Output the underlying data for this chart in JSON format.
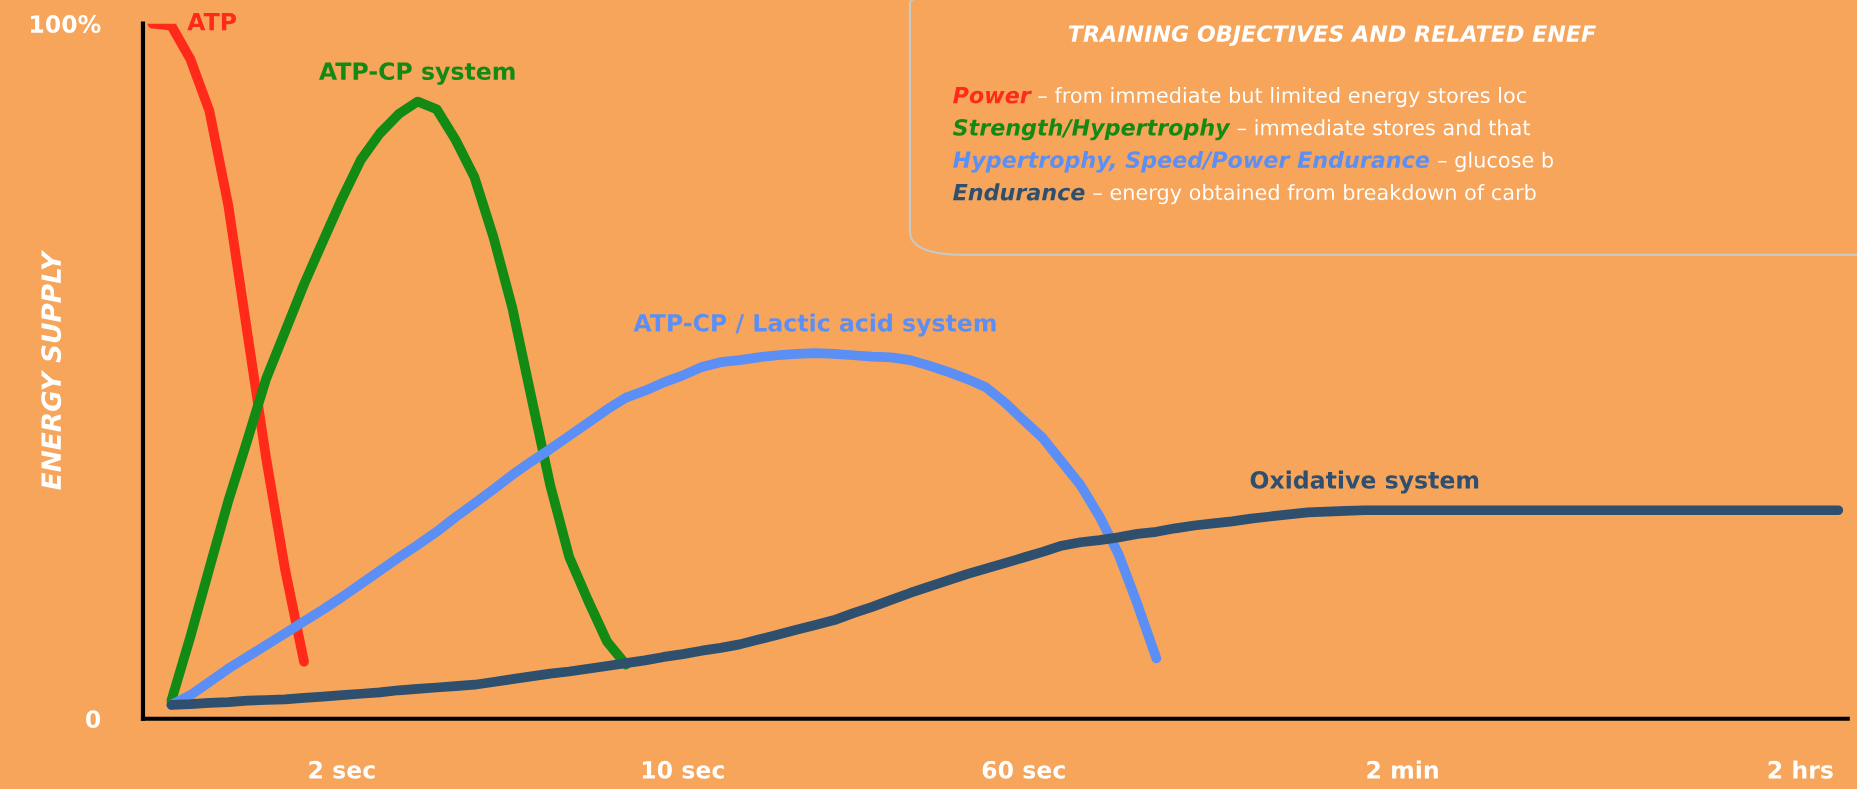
{
  "chart_data": {
    "type": "line",
    "ylabel": "ENERGY SUPPLY",
    "categories": [
      null,
      null,
      null,
      null,
      null,
      null,
      null,
      null,
      null,
      null,
      "2 sec",
      null,
      null,
      null,
      null,
      null,
      null,
      null,
      null,
      null,
      null,
      null,
      null,
      null,
      null,
      null,
      null,
      null,
      "10 sec",
      null,
      null,
      null,
      null,
      null,
      null,
      null,
      null,
      null,
      null,
      null,
      null,
      null,
      null,
      null,
      null,
      null,
      "60 sec",
      null,
      null,
      null,
      null,
      null,
      null,
      null,
      null,
      null,
      null,
      null,
      null,
      null,
      null,
      null,
      null,
      null,
      null,
      null,
      "2 min",
      null,
      null,
      null,
      null,
      null,
      null,
      null,
      null,
      null,
      null,
      null,
      null,
      null,
      null,
      null,
      null,
      null,
      null,
      null,
      null,
      "2 hrs",
      null,
      null
    ],
    "ylim": [
      0,
      100
    ],
    "yticks": [
      0,
      {
        "value": 100,
        "label": "100%"
      }
    ],
    "grid": false,
    "legend": false,
    "marker": "none",
    "line_style": "solid",
    "series": [
      {
        "name": "ATP",
        "color": "#ff2a1a",
        "values": [
          100,
          99.7,
          94.9,
          87.5,
          73.9,
          55.7,
          37.5,
          21.5,
          8.2,
          null,
          null,
          null,
          null,
          null,
          null,
          null,
          null,
          null,
          null,
          null,
          null,
          null,
          null,
          null,
          null,
          null,
          null,
          null,
          null,
          null,
          null,
          null,
          null,
          null,
          null,
          null,
          null,
          null,
          null,
          null,
          null,
          null,
          null,
          null,
          null,
          null,
          null,
          null,
          null,
          null,
          null,
          null,
          null,
          null,
          null,
          null,
          null,
          null,
          null,
          null,
          null,
          null,
          null,
          null,
          null,
          null,
          null,
          null,
          null,
          null,
          null,
          null,
          null,
          null,
          null,
          null,
          null,
          null,
          null,
          null,
          null,
          null,
          null,
          null,
          null,
          null,
          null,
          null,
          null,
          null
        ]
      },
      {
        "name": "ATP-CP system",
        "color": "#138a13",
        "values": [
          null,
          2.6,
          11.8,
          21.6,
          31.3,
          40,
          48.9,
          55.7,
          62.5,
          68.7,
          74.8,
          80.4,
          84.2,
          87,
          88.8,
          87.7,
          83.3,
          77.9,
          69.3,
          59.1,
          46.3,
          33.6,
          23.3,
          17,
          11.1,
          7.8,
          null,
          null,
          null,
          null,
          null,
          null,
          null,
          null,
          null,
          null,
          null,
          null,
          null,
          null,
          null,
          null,
          null,
          null,
          null,
          null,
          null,
          null,
          null,
          null,
          null,
          null,
          null,
          null,
          null,
          null,
          null,
          null,
          null,
          null,
          null,
          null,
          null,
          null,
          null,
          null,
          null,
          null,
          null,
          null,
          null,
          null,
          null,
          null,
          null,
          null,
          null,
          null,
          null,
          null,
          null,
          null,
          null,
          null,
          null,
          null,
          null,
          null,
          null,
          null
        ]
      },
      {
        "name": "ATP-CP / Lactic acid system",
        "color": "#5b8ff5",
        "values": [
          null,
          2,
          3.4,
          5.3,
          7.2,
          8.9,
          10.6,
          12.3,
          14,
          15.7,
          17.5,
          19.4,
          21.3,
          23.2,
          25,
          26.9,
          29,
          31,
          33,
          35.1,
          37,
          38.8,
          40.7,
          42.6,
          44.5,
          46.2,
          47.2,
          48.4,
          49.4,
          50.6,
          51.3,
          51.6,
          52,
          52.3,
          52.5,
          52.6,
          52.5,
          52.3,
          52.1,
          52,
          51.6,
          50.8,
          49.9,
          48.9,
          47.7,
          45.5,
          42.9,
          40.4,
          37,
          33.6,
          29.1,
          23.7,
          16.5,
          8.7,
          null,
          null,
          null,
          null,
          null,
          null,
          null,
          null,
          null,
          null,
          null,
          null,
          null,
          null,
          null,
          null,
          null,
          null,
          null,
          null,
          null,
          null,
          null,
          null,
          null,
          null,
          null,
          null,
          null,
          null,
          null,
          null,
          null,
          null,
          null,
          null
        ]
      },
      {
        "name": "Oxidative system",
        "color": "#2f4f6f",
        "values": [
          null,
          2,
          2.1,
          2.3,
          2.4,
          2.6,
          2.7,
          2.8,
          3,
          3.2,
          3.4,
          3.6,
          3.8,
          4.1,
          4.3,
          4.5,
          4.7,
          4.9,
          5.3,
          5.7,
          6.1,
          6.5,
          6.8,
          7.2,
          7.6,
          8,
          8.4,
          8.9,
          9.3,
          9.8,
          10.2,
          10.7,
          11.4,
          12.1,
          12.8,
          13.5,
          14.2,
          15.2,
          16.1,
          17.1,
          18.1,
          19,
          19.9,
          20.8,
          21.6,
          22.4,
          23.2,
          24,
          24.9,
          25.4,
          25.7,
          26.1,
          26.6,
          26.9,
          27.4,
          27.8,
          28.1,
          28.4,
          28.8,
          29.1,
          29.4,
          29.7,
          29.8,
          29.9,
          30,
          30,
          30,
          30,
          30,
          30,
          30,
          30,
          30,
          30,
          30,
          30,
          30,
          30,
          30,
          30,
          30,
          30,
          30,
          30,
          30,
          30,
          30,
          30,
          30,
          30
        ]
      }
    ],
    "annotations": [
      "TRAINING OBJECTIVES AND RELATED ENEF",
      "Power – from immediate but limited energy stores loc",
      "Strength/Hypertrophy – immediate stores and that",
      "Hypertrophy, Speed/Power Endurance – glucose b",
      "Endurance – energy obtained from breakdown of carb"
    ]
  }
}
